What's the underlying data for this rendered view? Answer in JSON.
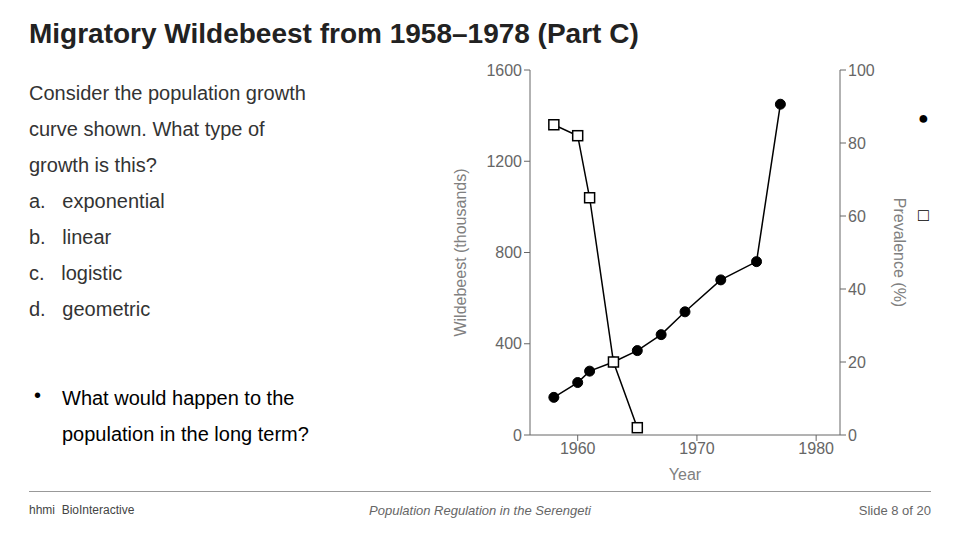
{
  "chart_data": {
    "type": "line",
    "title": "Migratory Wildebeest from 1958–1978 (Part C)",
    "x": [
      1958,
      1960,
      1961,
      1963,
      1965,
      1967,
      1969,
      1972,
      1975,
      1977
    ],
    "series": [
      {
        "name": "Wildebeest (thousands)",
        "color": "#000000",
        "marker": "circle",
        "values": [
          165,
          230,
          280,
          320,
          370,
          440,
          540,
          680,
          760,
          1450
        ]
      },
      {
        "name": "Prevalence (%)",
        "color": "#000000",
        "marker": "square",
        "axis": "y2",
        "values": [
          85,
          82,
          65,
          20,
          2,
          null,
          null,
          null,
          null,
          null
        ]
      }
    ],
    "xlabel": "Year",
    "ylabel": "Wildebeest (thousands)",
    "y2label": "Prevalence (%)",
    "xlim": [
      1956,
      1982
    ],
    "xticks": [
      1960,
      1970,
      1980
    ],
    "ylim": [
      0,
      1600
    ],
    "yticks": [
      0,
      400,
      800,
      1200,
      1600
    ],
    "y2lim": [
      0,
      100
    ],
    "y2ticks": [
      0,
      20,
      40,
      60,
      80,
      100
    ],
    "grid": false,
    "annotations": [
      "Consider the population growth",
      "curve shown. What type of",
      "growth is this?",
      "a.   exponential",
      "b.   linear",
      "c.   logistic",
      "d.   geometric",
      "•",
      "What would happen to the",
      "population in the long term?",
      "●",
      "□",
      "hhmi  BioInteractive",
      "Population Regulation in the Serengeti",
      "Slide 8 of 20"
    ]
  }
}
